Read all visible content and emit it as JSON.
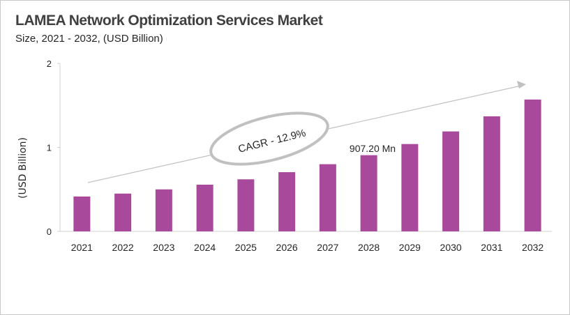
{
  "chart_data": {
    "type": "bar",
    "title": "LAMEA Network Optimization Services Market",
    "subtitle": "Size, 2021 - 2032, (USD Billion)",
    "ylabel": "(USD Billion)",
    "xlabel": "",
    "categories": [
      "2021",
      "2022",
      "2023",
      "2024",
      "2025",
      "2026",
      "2027",
      "2028",
      "2029",
      "2030",
      "2031",
      "2032"
    ],
    "values": [
      0.415,
      0.45,
      0.5,
      0.556,
      0.62,
      0.705,
      0.8,
      0.9072,
      1.04,
      1.19,
      1.37,
      1.57
    ],
    "ylim": [
      0,
      2
    ],
    "yticks": [
      "0",
      "1",
      "2"
    ],
    "grid": false,
    "bar_color": "#a8499c",
    "annotations": {
      "cagr": "CAGR - 12.9%",
      "data_label": "907.20 Mn"
    }
  }
}
